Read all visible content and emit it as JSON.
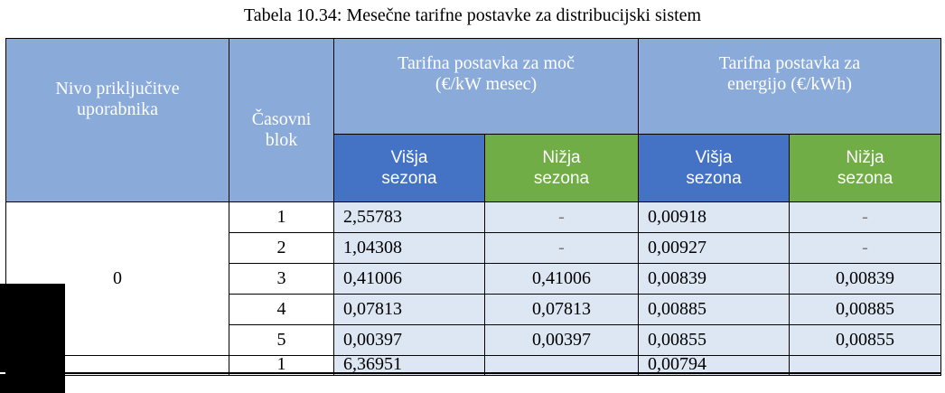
{
  "caption": "Tabela 10.34: Mesečne tarifne postavke za distribucijski sistem",
  "header": {
    "level_label": "Nivo priključitve uporabnika",
    "level_line1": "Nivo priključitve",
    "level_line2": "uporabnika",
    "block_line1": "Časovni",
    "block_line2": "blok",
    "power_line1": "Tarifna postavka za moč",
    "power_line2": "(€/kW mesec)",
    "energy_line1": "Tarifna postavka za",
    "energy_line2": "energijo (€/kWh)",
    "high_line1": "Višja",
    "high_line2": "sezona",
    "low_line1": "Nižja",
    "low_line2": "sezona"
  },
  "groups": [
    {
      "level": "0",
      "rows": [
        {
          "block": "1",
          "power_high": "2,55783",
          "power_low": "-",
          "energy_high": "0,00918",
          "energy_low": "-"
        },
        {
          "block": "2",
          "power_high": "1,04308",
          "power_low": "-",
          "energy_high": "0,00927",
          "energy_low": "-"
        },
        {
          "block": "3",
          "power_high": "0,41006",
          "power_low": "0,41006",
          "energy_high": "0,00839",
          "energy_low": "0,00839"
        },
        {
          "block": "4",
          "power_high": "0,07813",
          "power_low": "0,07813",
          "energy_high": "0,00885",
          "energy_low": "0,00885"
        },
        {
          "block": "5",
          "power_high": "0,00397",
          "power_low": "0,00397",
          "energy_high": "0,00855",
          "energy_low": "0,00855"
        }
      ]
    }
  ],
  "partial_row": {
    "block": "1",
    "power_high": "6,36951",
    "energy_high": "0,00794"
  },
  "colors": {
    "header_gray": "#8aaad9",
    "header_blue": "#4472c4",
    "header_green": "#70ad47",
    "cell_fill": "#dde7f3",
    "dash": "#7a7a7a"
  }
}
